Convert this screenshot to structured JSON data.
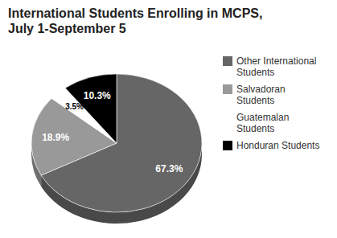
{
  "chart_data": {
    "type": "pie",
    "title": "International Students Enrolling in MCPS, July 1-September 5",
    "categories": [
      "Other International Students",
      "Salvadoran Students",
      "Guatemalan Students",
      "Honduran Students"
    ],
    "values": [
      67.3,
      18.9,
      3.5,
      10.3
    ],
    "value_labels": [
      "67.3%",
      "18.9%",
      "3.5%",
      "10.3%"
    ],
    "colors": [
      "#666666",
      "#999999",
      "#ffffff",
      "#000000"
    ],
    "data_labels": true,
    "legend": "right"
  }
}
